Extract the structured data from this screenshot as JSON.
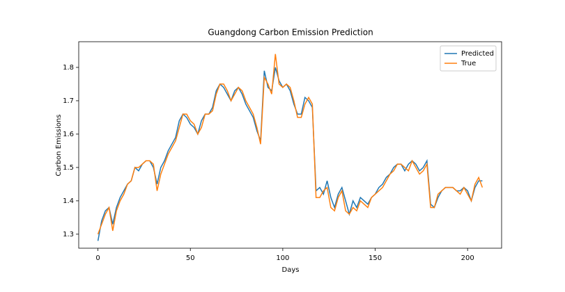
{
  "chart_data": {
    "type": "line",
    "title": "Guangdong Carbon Emission Prediction",
    "x_label": "Days",
    "y_label": "Carbon Emissions",
    "x": [
      0,
      2,
      4,
      6,
      8,
      10,
      12,
      14,
      16,
      18,
      20,
      22,
      24,
      26,
      28,
      30,
      32,
      34,
      36,
      38,
      40,
      42,
      44,
      46,
      48,
      50,
      52,
      54,
      56,
      58,
      60,
      62,
      64,
      66,
      68,
      70,
      72,
      74,
      76,
      78,
      80,
      82,
      84,
      86,
      88,
      90,
      92,
      94,
      96,
      98,
      100,
      102,
      104,
      106,
      108,
      110,
      112,
      114,
      116,
      118,
      120,
      122,
      124,
      126,
      128,
      130,
      132,
      134,
      136,
      138,
      140,
      142,
      144,
      146,
      148,
      150,
      152,
      154,
      156,
      158,
      160,
      162,
      164,
      166,
      168,
      170,
      172,
      174,
      176,
      178,
      180,
      182,
      184,
      186,
      188,
      190,
      192,
      194,
      196,
      198,
      200,
      202,
      204,
      206,
      208
    ],
    "series": [
      {
        "name": "Predicted",
        "color": "#1f77b4",
        "values": [
          1.28,
          1.34,
          1.37,
          1.38,
          1.33,
          1.38,
          1.41,
          1.43,
          1.45,
          1.46,
          1.5,
          1.49,
          1.51,
          1.52,
          1.52,
          1.5,
          1.45,
          1.5,
          1.52,
          1.55,
          1.57,
          1.59,
          1.64,
          1.66,
          1.65,
          1.63,
          1.62,
          1.6,
          1.64,
          1.66,
          1.66,
          1.68,
          1.73,
          1.75,
          1.74,
          1.72,
          1.7,
          1.73,
          1.74,
          1.72,
          1.69,
          1.67,
          1.65,
          1.61,
          1.58,
          1.79,
          1.74,
          1.73,
          1.8,
          1.76,
          1.74,
          1.75,
          1.73,
          1.69,
          1.66,
          1.66,
          1.71,
          1.7,
          1.68,
          1.43,
          1.44,
          1.42,
          1.46,
          1.41,
          1.38,
          1.42,
          1.44,
          1.4,
          1.36,
          1.4,
          1.38,
          1.41,
          1.4,
          1.39,
          1.41,
          1.42,
          1.44,
          1.45,
          1.47,
          1.48,
          1.5,
          1.51,
          1.51,
          1.49,
          1.51,
          1.52,
          1.51,
          1.49,
          1.5,
          1.52,
          1.39,
          1.38,
          1.41,
          1.43,
          1.44,
          1.44,
          1.44,
          1.43,
          1.43,
          1.44,
          1.43,
          1.4,
          1.44,
          1.46,
          1.46
        ]
      },
      {
        "name": "True",
        "color": "#ff7f0e",
        "values": [
          1.3,
          1.33,
          1.36,
          1.38,
          1.31,
          1.37,
          1.4,
          1.42,
          1.45,
          1.46,
          1.5,
          1.5,
          1.51,
          1.52,
          1.52,
          1.51,
          1.43,
          1.48,
          1.51,
          1.54,
          1.56,
          1.58,
          1.62,
          1.66,
          1.66,
          1.64,
          1.63,
          1.6,
          1.62,
          1.66,
          1.66,
          1.67,
          1.72,
          1.75,
          1.75,
          1.73,
          1.7,
          1.72,
          1.74,
          1.73,
          1.7,
          1.68,
          1.66,
          1.62,
          1.57,
          1.77,
          1.75,
          1.72,
          1.84,
          1.75,
          1.74,
          1.75,
          1.74,
          1.7,
          1.65,
          1.65,
          1.69,
          1.71,
          1.69,
          1.41,
          1.41,
          1.43,
          1.44,
          1.38,
          1.37,
          1.41,
          1.43,
          1.37,
          1.36,
          1.38,
          1.37,
          1.4,
          1.39,
          1.38,
          1.41,
          1.42,
          1.43,
          1.44,
          1.46,
          1.48,
          1.49,
          1.51,
          1.51,
          1.5,
          1.49,
          1.52,
          1.5,
          1.48,
          1.49,
          1.51,
          1.38,
          1.38,
          1.42,
          1.43,
          1.44,
          1.44,
          1.44,
          1.43,
          1.42,
          1.44,
          1.42,
          1.4,
          1.45,
          1.47,
          1.44
        ]
      }
    ],
    "xlim": [
      -10.4,
      218.4
    ],
    "xticks": [
      0,
      50,
      100,
      150,
      200
    ],
    "ylim": [
      1.258,
      1.877
    ],
    "yticks": [
      1.3,
      1.4,
      1.5,
      1.6,
      1.7,
      1.8
    ],
    "legend": "upper right"
  }
}
